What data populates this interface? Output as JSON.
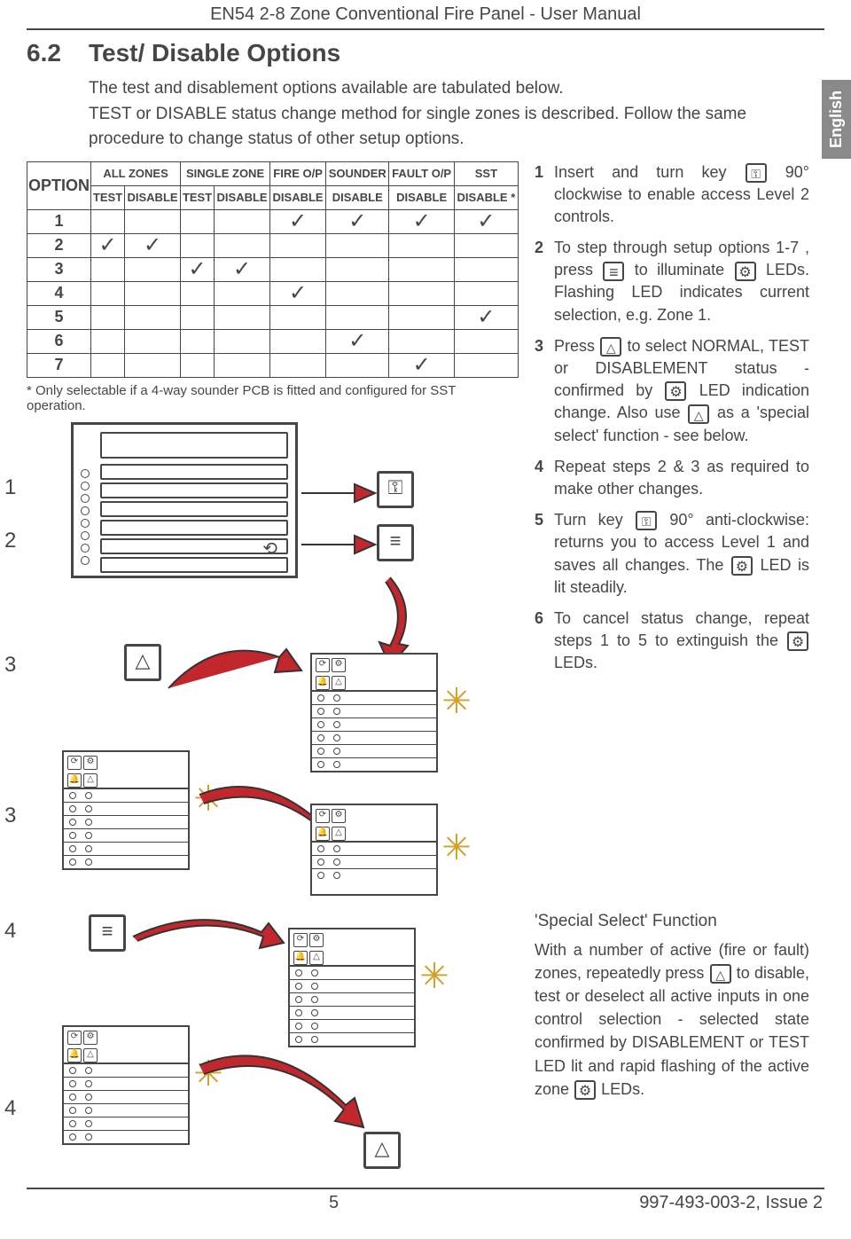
{
  "header": {
    "title": "EN54 2-8 Zone Conventional Fire Panel - User Manual",
    "lang_tab": "English"
  },
  "section": {
    "number": "6.2",
    "title": "Test/ Disable Options",
    "intro1": "The test and disablement options available are tabulated below.",
    "intro2": "TEST or DISABLE status change method for single zones is described. Follow the same procedure to change status of other setup options."
  },
  "table": {
    "col_option": "OPTION",
    "groups": [
      "ALL ZONES",
      "SINGLE ZONE",
      "FIRE O/P",
      "SOUNDER",
      "FAULT O/P",
      "SST"
    ],
    "subheads": [
      "TEST",
      "DISABLE",
      "TEST",
      "DISABLE",
      "DISABLE",
      "DISABLE",
      "DISABLE",
      "DISABLE *"
    ],
    "rows": [
      {
        "opt": "1",
        "cells": [
          "",
          "",
          "",
          "",
          "✓",
          "✓",
          "✓",
          "✓"
        ]
      },
      {
        "opt": "2",
        "cells": [
          "✓",
          "✓",
          "",
          "",
          "",
          "",
          "",
          ""
        ]
      },
      {
        "opt": "3",
        "cells": [
          "",
          "",
          "✓",
          "✓",
          "",
          "",
          "",
          ""
        ]
      },
      {
        "opt": "4",
        "cells": [
          "",
          "",
          "",
          "",
          "✓",
          "",
          "",
          ""
        ]
      },
      {
        "opt": "5",
        "cells": [
          "",
          "",
          "",
          "",
          "",
          "",
          "",
          "✓"
        ]
      },
      {
        "opt": "6",
        "cells": [
          "",
          "",
          "",
          "",
          "",
          "✓",
          "",
          ""
        ]
      },
      {
        "opt": "7",
        "cells": [
          "",
          "",
          "",
          "",
          "",
          "",
          "✓",
          ""
        ]
      }
    ],
    "footnote": "* Only selectable if a 4-way sounder PCB is fitted and configured for SST operation."
  },
  "steps": {
    "s1a": "Insert and turn key",
    "s1b": "90° clockwise to enable access Level 2 controls.",
    "s2a": "To step through setup options 1-7 , press",
    "s2b": "to illuminate",
    "s2c": "LEDs. Flashing LED indicates current selection, e.g. Zone 1.",
    "s3a": "Press",
    "s3b": "to select NORMAL, TEST or DISABLEMENT status  - confirmed by",
    "s3c": "LED indication change. Also use",
    "s3d": "as a 'special select' function - see below.",
    "s4": "Repeat steps 2 & 3 as required to make other changes.",
    "s5a": "Turn key",
    "s5b": "90° anti-clockwise: returns you to access Level 1 and saves all changes. The",
    "s5c": "LED is lit steadily.",
    "s6a": "To cancel status change, repeat steps 1 to 5 to extinguish the",
    "s6b": "LEDs."
  },
  "special": {
    "title": "'Special Select' Function",
    "p1": "With a number of active (fire or fault) zones, repeatedly press",
    "p2": "to disable, test or deselect all active inputs in one control selection - selected state confirmed by DISABLEMENT or TEST LED lit and rapid flashing of the active zone",
    "p3": "LEDs."
  },
  "diagram": {
    "side_labels_1": [
      "1",
      "2",
      "3",
      "3"
    ],
    "side_labels_2": [
      "4",
      "4"
    ]
  },
  "footer": {
    "page": "5",
    "doc": "997-493-003-2, Issue 2"
  },
  "colors": {
    "text": "#464646",
    "language_tab_bg": "#8a8a8a",
    "arrow": "#c1272d",
    "arrow_border": "#333333",
    "flash": "#d2a028"
  }
}
